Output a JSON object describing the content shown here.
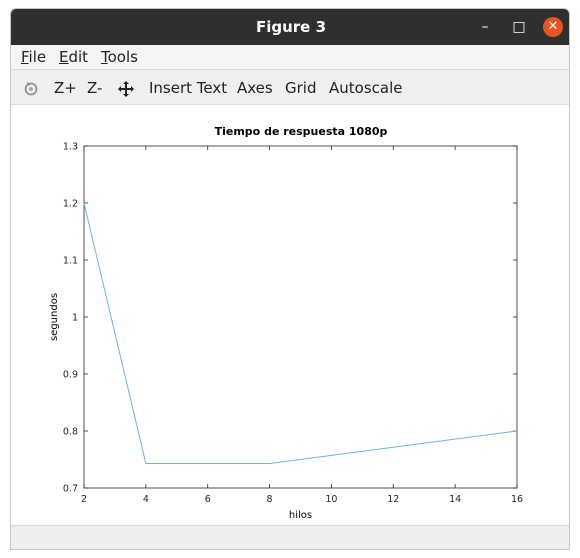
{
  "window": {
    "title": "Figure 3",
    "minimize_glyph": "–",
    "maximize_glyph": "□",
    "close_glyph": "✕"
  },
  "menu": {
    "file": {
      "key": "F",
      "rest": "ile"
    },
    "edit": {
      "key": "E",
      "rest": "dit"
    },
    "tools": {
      "key": "T",
      "rest": "ools"
    }
  },
  "toolbar": {
    "rotate_icon": "rotate-icon",
    "zoom_in_label": "Z+",
    "zoom_out_label": "Z-",
    "pan_icon": "pan-icon",
    "insert_text_label": "Insert Text",
    "axes_label": "Axes",
    "grid_label": "Grid",
    "autoscale_label": "Autoscale"
  },
  "chart_data": {
    "type": "line",
    "title": "Tiempo de respuesta 1080p",
    "xlabel": "hilos",
    "ylabel": "segundos",
    "x": [
      2,
      4,
      8,
      16
    ],
    "series": [
      {
        "values": [
          1.2,
          0.743,
          0.743,
          0.8
        ],
        "color": "#6cb4d8"
      }
    ],
    "xlim": [
      2,
      16
    ],
    "ylim": [
      0.7,
      1.3
    ],
    "xticks": [
      2,
      4,
      6,
      8,
      10,
      12,
      14,
      16
    ],
    "yticks": [
      0.7,
      0.8,
      0.9,
      1,
      1.1,
      1.2,
      1.3
    ],
    "grid": false,
    "legend": "none"
  }
}
